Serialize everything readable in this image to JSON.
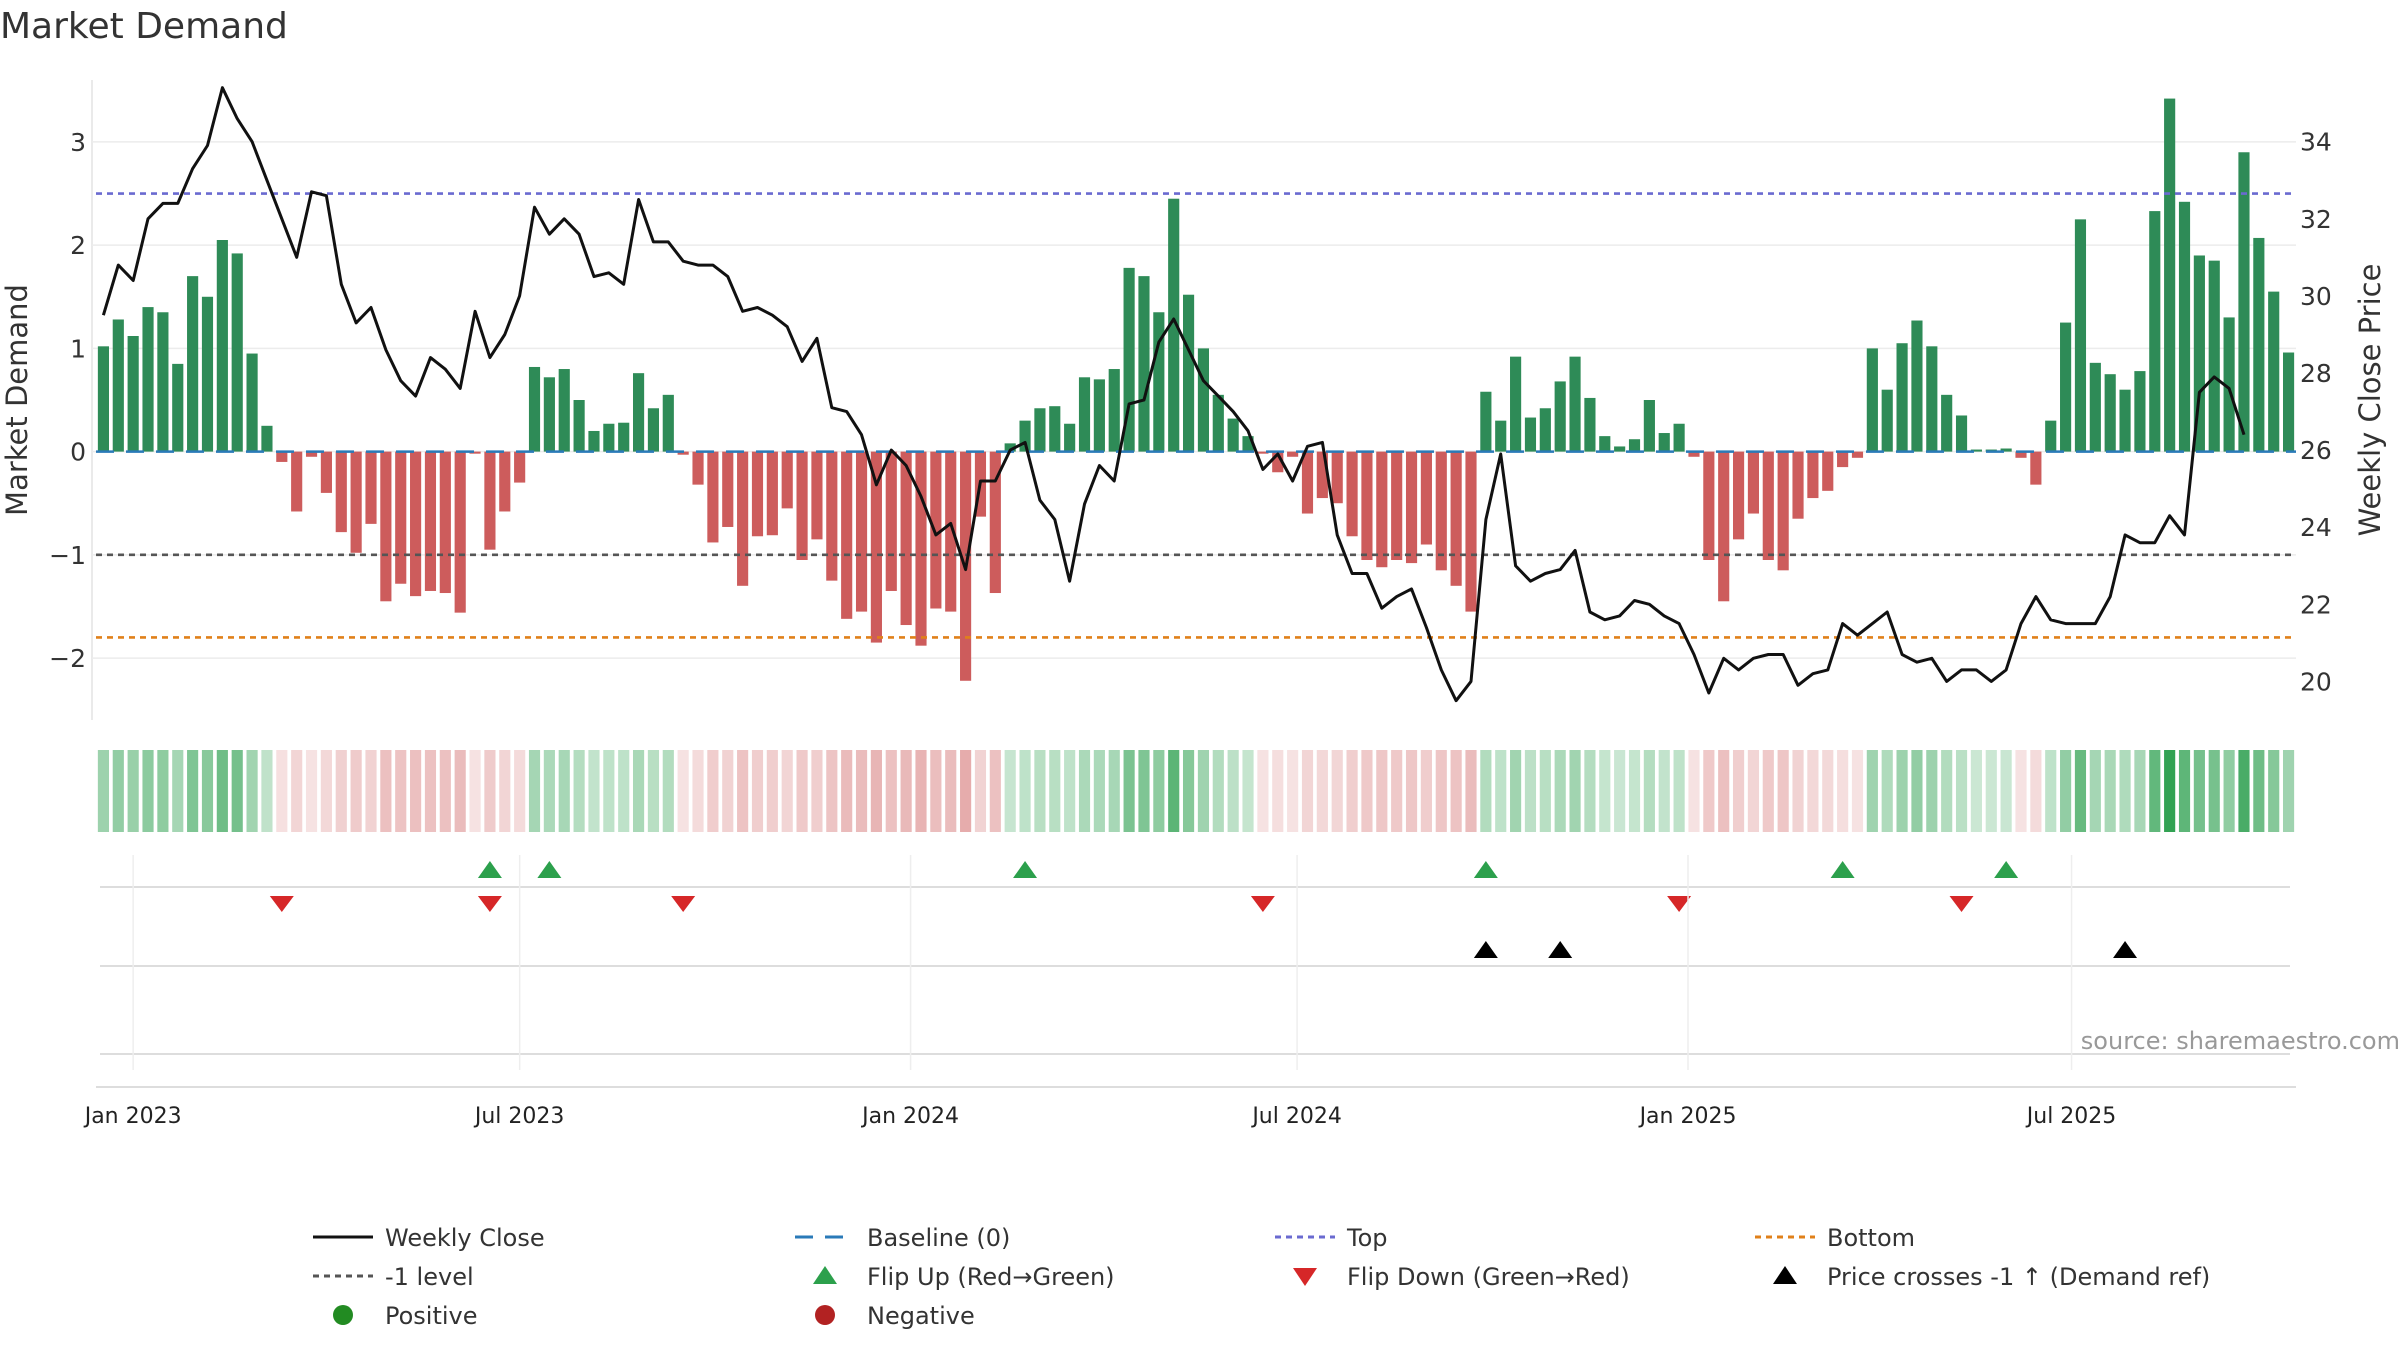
{
  "title": "Market Demand",
  "source": "source: sharemaestro.com",
  "chart_data": {
    "type": "bar",
    "title": "Market Demand",
    "ylabel_left": "Market Demand",
    "ylabel_right": "Weekly Close Price",
    "ylim_left": [
      -2.6,
      3.6
    ],
    "ylim_right": [
      19.0,
      35.6
    ],
    "yticks_left": [
      -2,
      -1,
      0,
      1,
      2,
      3
    ],
    "yticks_left_labels": [
      "−2",
      "−1",
      "0",
      "1",
      "2",
      "3"
    ],
    "yticks_right": [
      20,
      22,
      24,
      26,
      28,
      30,
      32,
      34
    ],
    "yticks_right_labels": [
      "20",
      "22",
      "24",
      "26",
      "28",
      "30",
      "32",
      "34"
    ],
    "start_week": "2022-12-19",
    "date_ticks": [
      {
        "label": "Jan 2023",
        "week": 2
      },
      {
        "label": "Jul 2023",
        "week": 28
      },
      {
        "label": "Jan 2024",
        "week": 54.3
      },
      {
        "label": "Jul 2024",
        "week": 80.3
      },
      {
        "label": "Jan 2025",
        "week": 106.6
      },
      {
        "label": "Jul 2025",
        "week": 132.4
      }
    ],
    "reference_lines": [
      {
        "name": "Top",
        "value": 2.5,
        "color": "#6a6ad0"
      },
      {
        "name": "Bottom",
        "value": -1.8,
        "color": "#e0801a"
      },
      {
        "name": "-1 level",
        "value": -1.0,
        "color": "#555555"
      },
      {
        "name": "Baseline (0)",
        "value": 0,
        "color": "#2a7ab8"
      }
    ],
    "colors": {
      "positive": "#2e8b57",
      "negative": "#cd5c5c",
      "close": "#111111",
      "flip_up": "#2ca04c",
      "flip_down": "#d62728",
      "cross": "#000000"
    },
    "series": [
      {
        "name": "Market Demand",
        "values": [
          1.02,
          1.28,
          1.12,
          1.4,
          1.35,
          0.85,
          1.7,
          1.5,
          2.05,
          1.92,
          0.95,
          0.25,
          -0.1,
          -0.58,
          -0.05,
          -0.4,
          -0.78,
          -0.98,
          -0.7,
          -1.45,
          -1.28,
          -1.4,
          -1.35,
          -1.37,
          -1.56,
          -0.02,
          -0.95,
          -0.58,
          -0.3,
          0.82,
          0.72,
          0.8,
          0.5,
          0.2,
          0.27,
          0.28,
          0.76,
          0.42,
          0.55,
          -0.03,
          -0.32,
          -0.88,
          -0.73,
          -1.3,
          -0.82,
          -0.81,
          -0.55,
          -1.05,
          -0.85,
          -1.25,
          -1.62,
          -1.55,
          -1.85,
          -1.35,
          -1.68,
          -1.88,
          -1.52,
          -1.55,
          -2.22,
          -0.63,
          -1.37,
          0.08,
          0.3,
          0.42,
          0.44,
          0.27,
          0.72,
          0.7,
          0.8,
          1.78,
          1.7,
          1.35,
          2.45,
          1.52,
          1.0,
          0.55,
          0.32,
          0.15,
          -0.02,
          -0.2,
          -0.05,
          -0.6,
          -0.45,
          -0.5,
          -0.82,
          -1.05,
          -1.12,
          -1.05,
          -1.08,
          -0.9,
          -1.15,
          -1.3,
          -1.55,
          0.58,
          0.3,
          0.92,
          0.33,
          0.42,
          0.68,
          0.92,
          0.52,
          0.15,
          0.05,
          0.12,
          0.5,
          0.18,
          0.27,
          -0.05,
          -1.05,
          -1.45,
          -0.85,
          -0.6,
          -1.05,
          -1.15,
          -0.65,
          -0.45,
          -0.38,
          -0.15,
          -0.06,
          1.0,
          0.6,
          1.05,
          1.27,
          1.02,
          0.55,
          0.35,
          0.02,
          0.02,
          0.03,
          -0.06,
          -0.32,
          0.3,
          1.25,
          2.25,
          0.86,
          0.75,
          0.6,
          0.78,
          2.33,
          3.42,
          2.42,
          1.9,
          1.85,
          1.3,
          2.9,
          2.07,
          1.55,
          0.96
        ]
      },
      {
        "name": "Weekly Close",
        "values": [
          29.5,
          30.8,
          30.4,
          32.0,
          32.4,
          32.4,
          33.3,
          33.9,
          35.4,
          34.6,
          34.0,
          33.0,
          32.0,
          31.0,
          32.7,
          32.6,
          30.3,
          29.3,
          29.7,
          28.6,
          27.8,
          27.4,
          28.4,
          28.1,
          27.6,
          29.6,
          28.4,
          29.0,
          30.0,
          32.3,
          31.6,
          32.0,
          31.6,
          30.5,
          30.6,
          30.3,
          32.5,
          31.4,
          31.4,
          30.9,
          30.8,
          30.8,
          30.5,
          29.6,
          29.7,
          29.5,
          29.2,
          28.3,
          28.9,
          27.1,
          27.0,
          26.4,
          25.1,
          26.0,
          25.6,
          24.8,
          23.8,
          24.1,
          22.9,
          25.2,
          25.2,
          26.0,
          26.2,
          24.7,
          24.2,
          22.6,
          24.6,
          25.6,
          25.2,
          27.2,
          27.3,
          28.8,
          29.4,
          28.6,
          27.8,
          27.4,
          27.0,
          26.5,
          25.5,
          25.9,
          25.2,
          26.1,
          26.2,
          23.8,
          22.8,
          22.8,
          21.9,
          22.2,
          22.4,
          21.4,
          20.3,
          19.5,
          20.0,
          24.2,
          25.9,
          23.0,
          22.6,
          22.8,
          22.9,
          23.4,
          21.8,
          21.6,
          21.7,
          22.1,
          22.0,
          21.7,
          21.5,
          20.7,
          19.7,
          20.6,
          20.3,
          20.6,
          20.7,
          20.7,
          19.9,
          20.2,
          20.3,
          21.5,
          21.2,
          21.5,
          21.8,
          20.7,
          20.5,
          20.6,
          20.0,
          20.3,
          20.3,
          20.0,
          20.3,
          21.5,
          22.2,
          21.6,
          21.5,
          21.5,
          21.5,
          22.2,
          23.8,
          23.6,
          23.6,
          24.3,
          23.8,
          27.5,
          27.9,
          27.6,
          26.4
        ]
      }
    ],
    "flip_up_weeks": [
      26,
      30,
      62,
      93,
      117,
      128
    ],
    "flip_down_weeks": [
      12,
      26,
      39,
      78,
      106,
      125
    ],
    "price_crosses_weeks": [
      93,
      98,
      136
    ],
    "legend": [
      {
        "label": "Weekly Close",
        "marker": "line-solid",
        "color": "#111111"
      },
      {
        "label": "Baseline (0)",
        "marker": "line-dashed",
        "color": "#2a7ab8"
      },
      {
        "label": "Top",
        "marker": "line-dotted",
        "color": "#6a6ad0"
      },
      {
        "label": "Bottom",
        "marker": "line-dotted",
        "color": "#e0801a"
      },
      {
        "label": "-1 level",
        "marker": "line-dotted",
        "color": "#555555"
      },
      {
        "label": "Flip Up (Red→Green)",
        "marker": "triangle-up",
        "color": "#2ca04c"
      },
      {
        "label": "Flip Down (Green→Red)",
        "marker": "triangle-down",
        "color": "#d62728"
      },
      {
        "label": "Price crosses -1 ↑ (Demand ref)",
        "marker": "triangle-up",
        "color": "#000000"
      },
      {
        "label": "Positive",
        "marker": "circle",
        "color": "#228b22"
      },
      {
        "label": "Negative",
        "marker": "circle",
        "color": "#b22222"
      }
    ]
  }
}
